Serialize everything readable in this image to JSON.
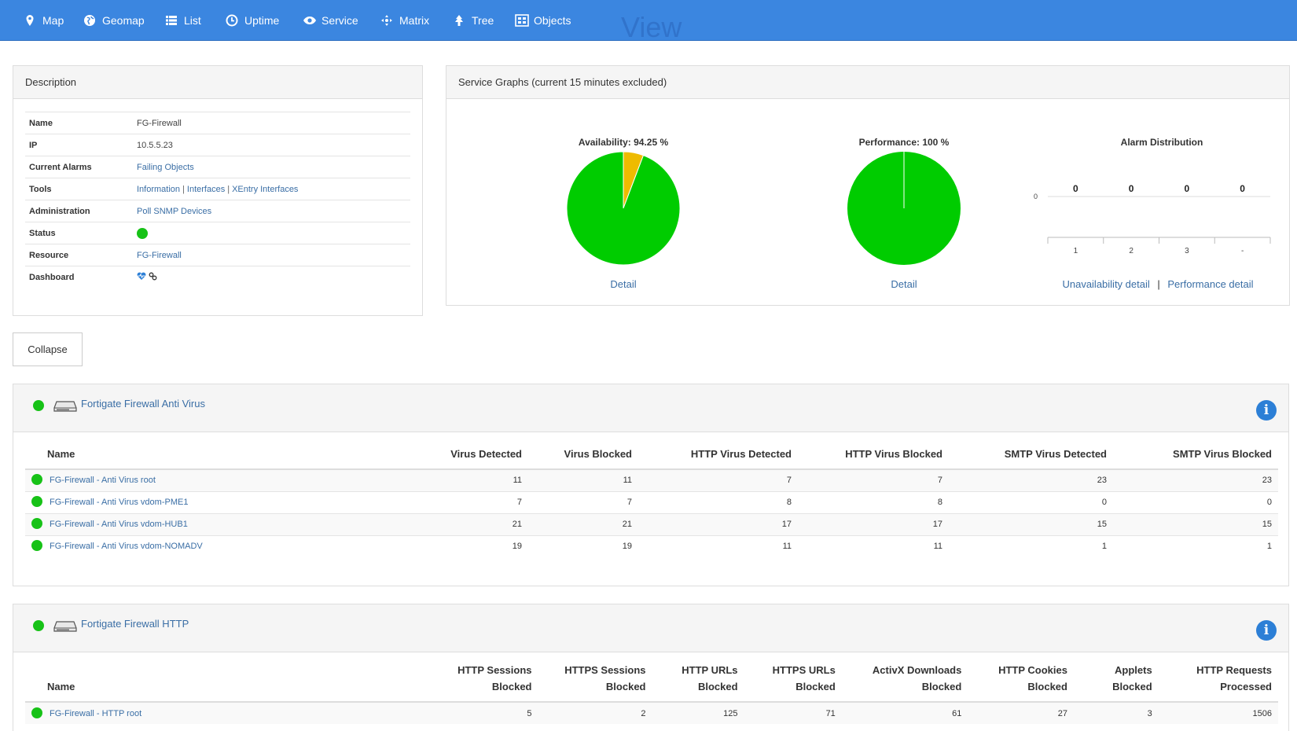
{
  "nav": {
    "ghost_text": "View",
    "items": [
      {
        "label": "Map",
        "icon": "map-pin-icon"
      },
      {
        "label": "Geomap",
        "icon": "globe-icon"
      },
      {
        "label": "List",
        "icon": "list-icon"
      },
      {
        "label": "Uptime",
        "icon": "clock-icon"
      },
      {
        "label": "Service",
        "icon": "eye-icon"
      },
      {
        "label": "Matrix",
        "icon": "matrix-icon"
      },
      {
        "label": "Tree",
        "icon": "tree-icon"
      },
      {
        "label": "Objects",
        "icon": "objects-icon"
      }
    ]
  },
  "description": {
    "title": "Description",
    "rows": {
      "name": {
        "key": "Name",
        "value": "FG-Firewall"
      },
      "ip": {
        "key": "IP",
        "value": "10.5.5.23"
      },
      "alarms": {
        "key": "Current Alarms",
        "value": "Failing Objects"
      },
      "tools": {
        "key": "Tools",
        "links": [
          "Information",
          "Interfaces",
          "XEntry Interfaces"
        ],
        "separator": "|"
      },
      "admin": {
        "key": "Administration",
        "value": "Poll SNMP Devices"
      },
      "status": {
        "key": "Status",
        "color": "#17c217"
      },
      "resource": {
        "key": "Resource",
        "value": "FG-Firewall"
      },
      "dashboard": {
        "key": "Dashboard",
        "icons": [
          "heartbeat-icon",
          "link-icon"
        ]
      }
    }
  },
  "graphs": {
    "title": "Service Graphs (current 15 minutes excluded)",
    "availability": {
      "title": "Availability: 94.25 %",
      "detail": "Detail"
    },
    "performance": {
      "title": "Performance: 100 %",
      "detail": "Detail"
    },
    "alarm": {
      "title": "Alarm Distribution",
      "unavail_link": "Unavailability detail",
      "perf_link": "Performance detail",
      "separator": "|"
    }
  },
  "chart_data": [
    {
      "type": "pie",
      "title": "Availability: 94.25 %",
      "slices": [
        {
          "value": 94.25,
          "color": "#00cc00"
        },
        {
          "value": 5.75,
          "color": "#eebb00"
        }
      ]
    },
    {
      "type": "pie",
      "title": "Performance: 100 %",
      "slices": [
        {
          "value": 100,
          "color": "#00cc00"
        }
      ]
    },
    {
      "type": "bar",
      "title": "Alarm Distribution",
      "categories": [
        "1",
        "2",
        "3",
        "-"
      ],
      "values": [
        0,
        0,
        0,
        0
      ],
      "y_tick": "0",
      "grid": false
    }
  ],
  "collapse_label": "Collapse",
  "antivirus": {
    "title": "Fortigate Firewall Anti Virus",
    "columns": [
      "Name",
      "Virus Detected",
      "Virus Blocked",
      "HTTP Virus Detected",
      "HTTP Virus Blocked",
      "SMTP Virus Detected",
      "SMTP Virus Blocked"
    ],
    "rows": [
      {
        "name": "FG-Firewall - Anti Virus root",
        "values": [
          "11",
          "11",
          "7",
          "7",
          "23",
          "23"
        ]
      },
      {
        "name": "FG-Firewall - Anti Virus vdom-PME1",
        "values": [
          "7",
          "7",
          "8",
          "8",
          "0",
          "0"
        ]
      },
      {
        "name": "FG-Firewall - Anti Virus vdom-HUB1",
        "values": [
          "21",
          "21",
          "17",
          "17",
          "15",
          "15"
        ]
      },
      {
        "name": "FG-Firewall - Anti Virus vdom-NOMADV",
        "values": [
          "19",
          "19",
          "11",
          "11",
          "1",
          "1"
        ]
      }
    ]
  },
  "http": {
    "title": "Fortigate Firewall HTTP",
    "columns": [
      {
        "l1": "",
        "l2": "Name"
      },
      {
        "l1": "HTTP Sessions",
        "l2": "Blocked"
      },
      {
        "l1": "HTTPS Sessions",
        "l2": "Blocked"
      },
      {
        "l1": "HTTP URLs",
        "l2": "Blocked"
      },
      {
        "l1": "HTTPS URLs",
        "l2": "Blocked"
      },
      {
        "l1": "ActivX Downloads",
        "l2": "Blocked"
      },
      {
        "l1": "HTTP Cookies",
        "l2": "Blocked"
      },
      {
        "l1": "Applets",
        "l2": "Blocked"
      },
      {
        "l1": "HTTP Requests",
        "l2": "Processed"
      }
    ],
    "rows": [
      {
        "name": "FG-Firewall - HTTP root",
        "values": [
          "5",
          "2",
          "125",
          "71",
          "61",
          "27",
          "3",
          "1506"
        ]
      }
    ]
  }
}
